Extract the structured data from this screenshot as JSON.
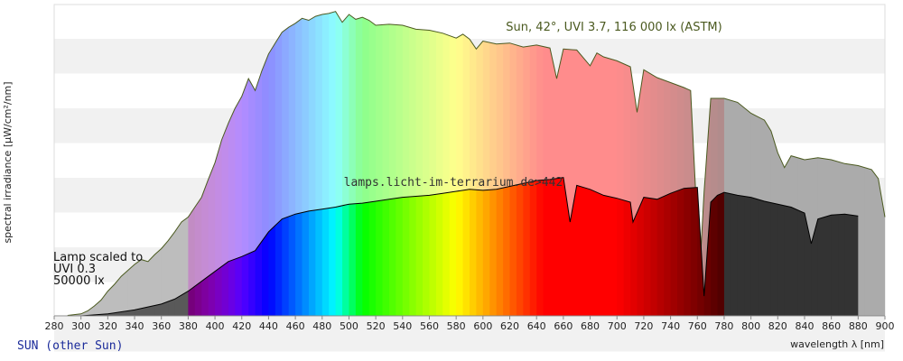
{
  "chart_data": {
    "type": "area",
    "xlabel": "wavelength λ [nm]",
    "ylabel": "spectral irradiance [µW/cm²/nm]",
    "xlim": [
      280,
      900
    ],
    "x_ticks": [
      280,
      300,
      320,
      340,
      360,
      380,
      400,
      420,
      440,
      460,
      480,
      500,
      520,
      540,
      560,
      580,
      600,
      620,
      640,
      660,
      680,
      700,
      720,
      740,
      760,
      780,
      800,
      820,
      840,
      860,
      880,
      900
    ],
    "grid": "horizontal bands",
    "series": [
      {
        "name": "Sun, 42°, UVI 3.7, 116 000 lx (ASTM)",
        "x": [
          290,
          300,
          305,
          310,
          315,
          320,
          325,
          330,
          335,
          340,
          345,
          350,
          355,
          360,
          365,
          370,
          375,
          380,
          385,
          390,
          395,
          400,
          405,
          410,
          415,
          420,
          425,
          430,
          435,
          440,
          445,
          450,
          455,
          460,
          465,
          470,
          475,
          480,
          485,
          490,
          495,
          500,
          505,
          510,
          515,
          520,
          530,
          540,
          550,
          560,
          570,
          580,
          585,
          590,
          595,
          600,
          610,
          620,
          630,
          640,
          650,
          655,
          660,
          670,
          680,
          685,
          690,
          700,
          710,
          715,
          720,
          730,
          740,
          750,
          755,
          760,
          762,
          765,
          770,
          780,
          790,
          800,
          810,
          815,
          820,
          825,
          830,
          840,
          850,
          860,
          870,
          880,
          890,
          895,
          900
        ],
        "y": [
          0.5,
          2,
          5,
          10,
          16,
          25,
          32,
          40,
          46,
          52,
          57,
          55,
          62,
          68,
          76,
          85,
          95,
          100,
          110,
          120,
          138,
          155,
          178,
          195,
          210,
          222,
          240,
          228,
          248,
          265,
          276,
          287,
          292,
          296,
          301,
          299,
          303,
          305,
          306,
          308,
          297,
          305,
          300,
          302,
          299,
          294,
          295,
          294,
          290,
          289,
          286,
          281,
          285,
          280,
          270,
          278,
          275,
          276,
          272,
          274,
          271,
          240,
          270,
          269,
          253,
          266,
          262,
          258,
          252,
          206,
          249,
          241,
          236,
          231,
          228,
          90,
          50,
          125,
          220,
          220,
          216,
          205,
          198,
          187,
          165,
          150,
          162,
          158,
          160,
          158,
          154,
          152,
          148,
          139,
          100
        ]
      },
      {
        "name": "lamps.licht-im-terrarium.de>442",
        "x": [
          300,
          320,
          340,
          360,
          370,
          380,
          390,
          400,
          410,
          420,
          430,
          440,
          450,
          460,
          470,
          480,
          490,
          500,
          510,
          520,
          530,
          540,
          550,
          560,
          570,
          580,
          590,
          600,
          610,
          620,
          630,
          640,
          650,
          660,
          665,
          670,
          680,
          690,
          700,
          710,
          712,
          720,
          730,
          740,
          750,
          760,
          765,
          770,
          775,
          780,
          790,
          800,
          810,
          820,
          830,
          840,
          845,
          850,
          860,
          870,
          880
        ],
        "y": [
          0,
          2,
          6,
          12,
          17,
          25,
          35,
          45,
          55,
          60,
          66,
          85,
          98,
          103,
          106,
          108,
          110,
          113,
          114,
          116,
          118,
          120,
          121,
          122,
          124,
          126,
          128,
          127,
          128,
          131,
          134,
          137,
          138,
          140,
          95,
          132,
          128,
          122,
          119,
          115,
          95,
          120,
          118,
          124,
          129,
          130,
          20,
          115,
          122,
          125,
          122,
          120,
          116,
          113,
          110,
          104,
          73,
          98,
          102,
          103,
          101
        ]
      }
    ],
    "annotations": {
      "lamp_note": [
        "Lamp scaled to",
        "UVI 0.3",
        "50000 lx"
      ]
    }
  },
  "footer": {
    "link_label": "SUN (other Sun)"
  },
  "colors": {
    "sun_outline": "#4b5a20",
    "lamp_outline": "#000000",
    "grid_band": "#f1f1f1",
    "footer_link": "#1a2a9a"
  }
}
